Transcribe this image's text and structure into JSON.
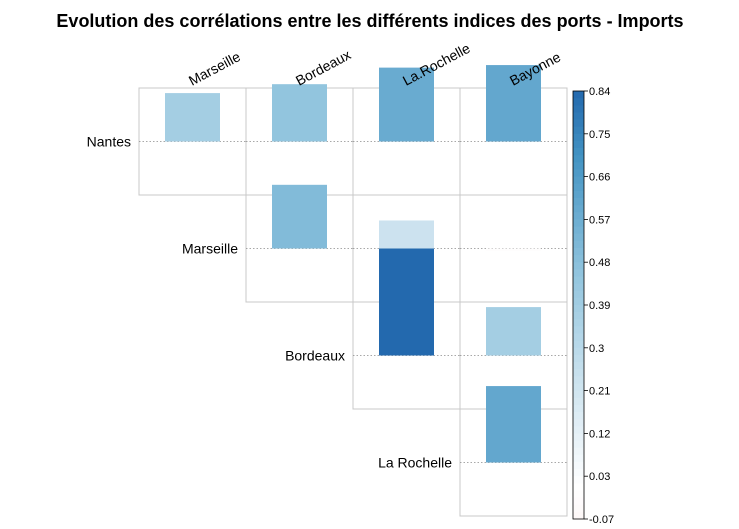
{
  "chart_data": {
    "type": "heatmap",
    "title": "Evolution des corrélations entre les différents indices des ports - Imports",
    "columns": [
      "Marseille",
      "Bordeaux",
      "La.Rochelle",
      "Bayonne"
    ],
    "rows": [
      "Nantes",
      "Marseille",
      "Bordeaux",
      "La Rochelle"
    ],
    "cells": [
      {
        "row": "Nantes",
        "col": "Marseille",
        "value": 0.38
      },
      {
        "row": "Nantes",
        "col": "Bordeaux",
        "value": 0.45
      },
      {
        "row": "Nantes",
        "col": "La.Rochelle",
        "value": 0.58
      },
      {
        "row": "Nantes",
        "col": "Bayonne",
        "value": 0.6
      },
      {
        "row": "Marseille",
        "col": "Bordeaux",
        "value": 0.5
      },
      {
        "row": "Marseille",
        "col": "La.Rochelle",
        "value": 0.22
      },
      {
        "row": "Marseille",
        "col": "Bayonne",
        "value": -0.02
      },
      {
        "row": "Bordeaux",
        "col": "La.Rochelle",
        "value": 0.84
      },
      {
        "row": "Bordeaux",
        "col": "Bayonne",
        "value": 0.38
      },
      {
        "row": "La Rochelle",
        "col": "Bayonne",
        "value": 0.6
      }
    ],
    "colorbar": {
      "min": -0.07,
      "max": 0.84,
      "ticks": [
        "0.84",
        "0.75",
        "0.66",
        "0.57",
        "0.48",
        "0.39",
        "0.3",
        "0.21",
        "0.12",
        "0.03",
        "-0.07"
      ]
    },
    "colors": {
      "negative": "#b2182b",
      "neutral": "#ffffff",
      "positive": "#053061",
      "grid": "#c8c8c8",
      "guide": "#8c8c8c"
    }
  }
}
